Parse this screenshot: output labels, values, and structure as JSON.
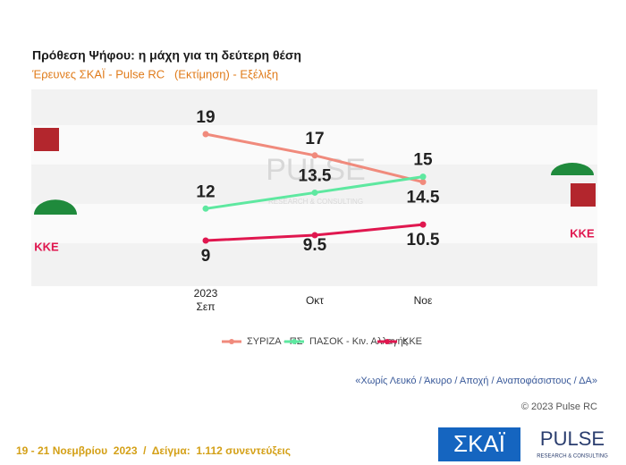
{
  "chart_data": {
    "type": "line",
    "title": "Πρόθεση Ψήφου: η μάχη για τη δεύτερη θέση",
    "subtitle": "Έρευνες ΣΚΑΪ - Pulse RC   (Εκτίμηση) - Εξέλιξη",
    "year_label": "2023",
    "categories": [
      "Σεπ",
      "Οκτ",
      "Νοε"
    ],
    "series": [
      {
        "name": "ΣΥΡΙΖΑ - ΠΣ",
        "color": "#f08a7c",
        "values": [
          19,
          17,
          14.5
        ]
      },
      {
        "name": "ΠΑΣΟΚ - Κιν. Αλλαγής",
        "color": "#5ee8a0",
        "values": [
          12,
          13.5,
          15
        ]
      },
      {
        "name": "ΚΚΕ",
        "color": "#e0174f",
        "values": [
          9,
          9.5,
          10.5
        ]
      }
    ],
    "note": "«Χωρίς Λευκό / Άκυρο / Αποχή / Αναποφάσιστους / ΔΑ»",
    "copyright": "© 2023 Pulse RC",
    "footer": "19 - 21 Νοεμβρίου  2023  /  Δείγμα:  1.112 συνεντεύξεις",
    "logos": {
      "skai": "ΣΚΑΪ",
      "pulse": "PULSE",
      "pulse_sub": "RESEARCH & CONSULTING"
    }
  }
}
